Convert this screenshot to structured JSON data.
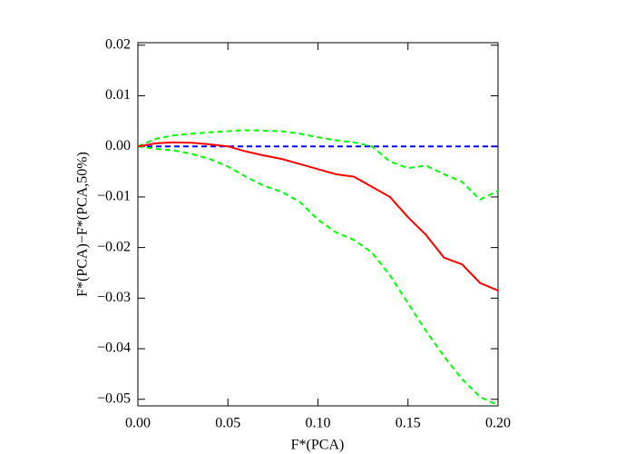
{
  "chart_data": {
    "type": "line",
    "xlabel": "F*(PCA)",
    "ylabel": "F*(PCA)−F*(PCA,50%)",
    "x": [
      0,
      0.01,
      0.02,
      0.03,
      0.04,
      0.05,
      0.06,
      0.07,
      0.08,
      0.09,
      0.1,
      0.11,
      0.12,
      0.13,
      0.14,
      0.15,
      0.16,
      0.17,
      0.18,
      0.19,
      0.2
    ],
    "series": [
      {
        "color": "#0000ff",
        "dashed": true,
        "values": [
          0,
          0,
          0,
          0,
          0,
          0,
          0,
          0,
          0,
          0,
          0,
          0,
          0,
          0,
          0,
          0,
          0,
          0,
          0,
          0,
          0
        ]
      },
      {
        "color": "#00ff00",
        "dashed": true,
        "values": [
          0,
          0.0015,
          0.0022,
          0.0025,
          0.0028,
          0.003,
          0.0032,
          0.0031,
          0.003,
          0.0025,
          0.0018,
          0.0012,
          0.0008,
          0.0,
          -0.003,
          -0.0043,
          -0.0038,
          -0.0055,
          -0.007,
          -0.0105,
          -0.0088
        ]
      },
      {
        "color": "#00ff00",
        "dashed": true,
        "values": [
          0,
          -0.0005,
          -0.0008,
          -0.0015,
          -0.0025,
          -0.004,
          -0.006,
          -0.0078,
          -0.009,
          -0.011,
          -0.0145,
          -0.017,
          -0.0185,
          -0.021,
          -0.0255,
          -0.031,
          -0.0365,
          -0.0415,
          -0.046,
          -0.0495,
          -0.0512
        ]
      },
      {
        "color": "#ff0000",
        "dashed": false,
        "values": [
          0,
          0.0006,
          0.0008,
          0.0007,
          0.0004,
          0.0,
          -0.001,
          -0.0018,
          -0.0025,
          -0.0035,
          -0.0045,
          -0.0055,
          -0.006,
          -0.008,
          -0.01,
          -0.014,
          -0.0175,
          -0.022,
          -0.0233,
          -0.027,
          -0.0285
        ]
      }
    ],
    "xlim": [
      0,
      0.2
    ],
    "ylim": [
      -0.0513,
      0.0205
    ],
    "xticks": [
      {
        "value": 0,
        "label": "0.00"
      },
      0.05,
      {
        "value": 0.1,
        "label": "0.10"
      },
      0.15,
      {
        "value": 0.2,
        "label": "0.20"
      }
    ],
    "yticks": [
      0.02,
      0.01,
      {
        "value": 0,
        "label": "0.00"
      },
      {
        "value": -0.01,
        "label": "−0.01"
      },
      {
        "value": -0.02,
        "label": "−0.02"
      },
      {
        "value": -0.03,
        "label": "−0.03"
      },
      {
        "value": -0.04,
        "label": "−0.04"
      },
      {
        "value": -0.05,
        "label": "−0.05"
      }
    ]
  }
}
